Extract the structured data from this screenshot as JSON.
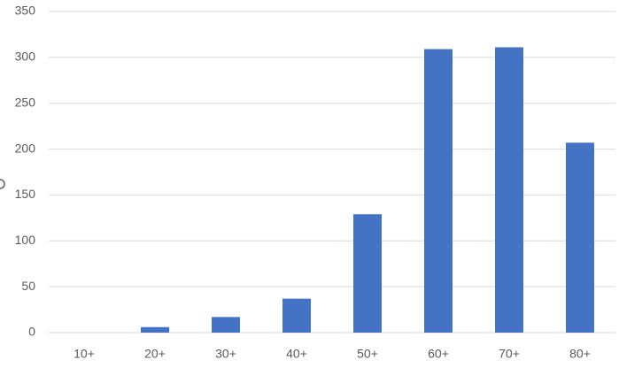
{
  "chart_data": {
    "type": "bar",
    "categories": [
      "10+",
      "20+",
      "30+",
      "40+",
      "50+",
      "60+",
      "70+",
      "80+"
    ],
    "values": [
      0,
      6,
      17,
      37,
      129,
      309,
      311,
      207
    ],
    "color": "#4472c4",
    "ylim": [
      0,
      350
    ],
    "yticks": [
      0,
      50,
      100,
      150,
      200,
      250,
      300,
      350
    ],
    "grid": true
  }
}
